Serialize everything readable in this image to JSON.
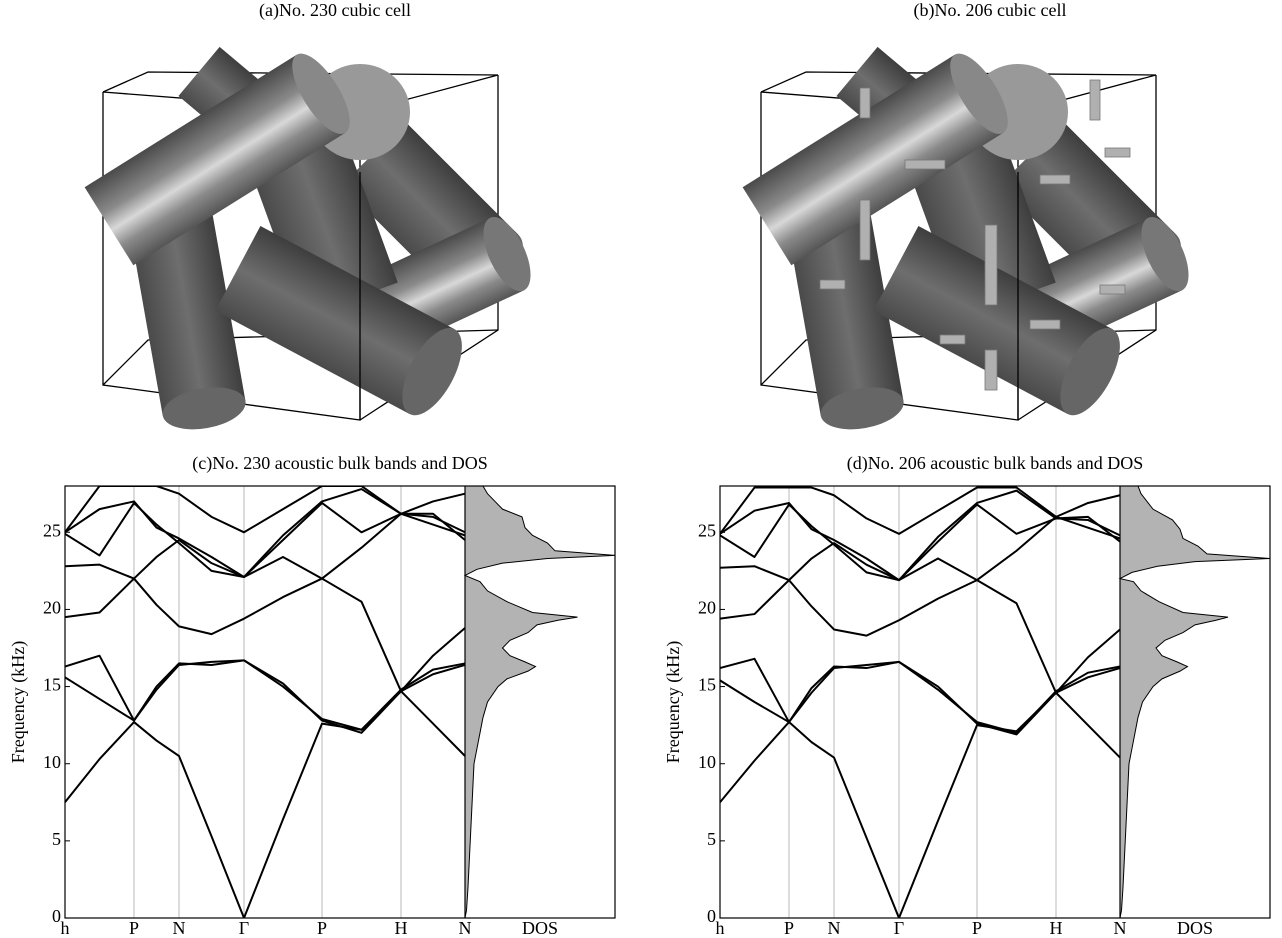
{
  "panels": [
    {
      "title": "(a)No. 230 cubic cell"
    },
    {
      "title": "(b)No. 206 cubic cell"
    }
  ],
  "chart_data": [
    {
      "type": "line",
      "title": "(c)No. 230 acoustic bulk bands and DOS",
      "ylabel": "Frequency (kHz)",
      "xlim": [
        0,
        4
      ],
      "ylim": [
        0,
        28
      ],
      "yticks": [
        0,
        5,
        10,
        15,
        20,
        25
      ],
      "xticks": [
        {
          "value": 0,
          "label": "h"
        },
        {
          "value": 0.69,
          "label": "P"
        },
        {
          "value": 1.14,
          "label": "N"
        },
        {
          "value": 1.79,
          "label": "Γ"
        },
        {
          "value": 2.57,
          "label": "P"
        },
        {
          "value": 3.36,
          "label": "H"
        },
        {
          "value": 4,
          "label": "N"
        }
      ],
      "x": [
        0,
        0.345,
        0.69,
        0.915,
        1.14,
        1.465,
        1.79,
        2.18,
        2.57,
        2.965,
        3.36,
        3.68,
        4
      ],
      "series": [
        {
          "color": "#000000",
          "values": [
            7.5,
            10.3,
            12.7,
            11.5,
            10.5,
            5.3,
            0,
            6.4,
            12.6,
            12.2,
            14.7,
            12.6,
            10.5
          ]
        },
        {
          "color": "#000000",
          "values": [
            15.6,
            14.2,
            12.8,
            14.8,
            16.4,
            16.6,
            16.7,
            15.2,
            12.8,
            12.0,
            14.7,
            15.8,
            16.4
          ]
        },
        {
          "color": "#000000",
          "values": [
            16.3,
            17.0,
            12.8,
            15.0,
            16.5,
            16.4,
            16.7,
            15.0,
            12.9,
            12.2,
            14.8,
            16.1,
            16.5
          ]
        },
        {
          "color": "#000000",
          "values": [
            19.5,
            19.8,
            22.0,
            20.3,
            18.9,
            18.4,
            19.4,
            20.8,
            22.0,
            24.0,
            26.2,
            25.5,
            24.8
          ]
        },
        {
          "color": "#000000",
          "values": [
            22.8,
            22.9,
            22.0,
            23.4,
            24.5,
            23.0,
            22.1,
            23.4,
            22.0,
            20.5,
            14.7,
            17.0,
            18.8
          ]
        },
        {
          "color": "#000000",
          "values": [
            24.9,
            23.5,
            26.9,
            25.5,
            24.3,
            22.5,
            22.1,
            24.5,
            26.9,
            25.0,
            26.2,
            26.0,
            25.0
          ]
        },
        {
          "color": "#000000",
          "values": [
            25.0,
            26.5,
            27.0,
            25.3,
            24.6,
            23.4,
            22.1,
            24.8,
            27.0,
            27.8,
            26.2,
            26.2,
            24.5
          ]
        },
        {
          "color": "#000000",
          "values": [
            25.0,
            28.0,
            28.0,
            28.0,
            27.5,
            26.0,
            25.0,
            26.5,
            28.0,
            28.0,
            26.2,
            27.0,
            27.5
          ]
        }
      ],
      "dos": {
        "label": "DOS",
        "color": "#b3b3b3",
        "xlim": [
          0,
          1
        ],
        "frequency": [
          0,
          0.5,
          2,
          4,
          6,
          8,
          10,
          11,
          12,
          13,
          14,
          15,
          15.5,
          16,
          16.3,
          16.6,
          17,
          17.5,
          18,
          18.5,
          19,
          19.3,
          19.5,
          19.8,
          20.5,
          21.2,
          21.8,
          22.2,
          22.6,
          23.0,
          23.3,
          23.5,
          23.8,
          24.3,
          24.8,
          25.3,
          26,
          26.5,
          27,
          27.5,
          28
        ],
        "density": [
          0,
          0.01,
          0.02,
          0.03,
          0.04,
          0.05,
          0.06,
          0.08,
          0.1,
          0.12,
          0.15,
          0.22,
          0.28,
          0.42,
          0.47,
          0.4,
          0.3,
          0.25,
          0.3,
          0.42,
          0.48,
          0.62,
          0.75,
          0.45,
          0.28,
          0.15,
          0.1,
          0,
          0.08,
          0.25,
          0.55,
          1.0,
          0.6,
          0.55,
          0.45,
          0.4,
          0.38,
          0.25,
          0.2,
          0.15,
          0.12
        ]
      }
    },
    {
      "type": "line",
      "title": "(d)No. 206 acoustic bulk bands and DOS",
      "ylabel": "Frequency (kHz)",
      "xlim": [
        0,
        4
      ],
      "ylim": [
        0,
        28
      ],
      "yticks": [
        0,
        5,
        10,
        15,
        20,
        25
      ],
      "xticks": [
        {
          "value": 0,
          "label": "h"
        },
        {
          "value": 0.69,
          "label": "P"
        },
        {
          "value": 1.14,
          "label": "N"
        },
        {
          "value": 1.79,
          "label": "Γ"
        },
        {
          "value": 2.57,
          "label": "P"
        },
        {
          "value": 3.36,
          "label": "H"
        },
        {
          "value": 4,
          "label": "N"
        }
      ],
      "x": [
        0,
        0.345,
        0.69,
        0.915,
        1.14,
        1.465,
        1.79,
        2.18,
        2.57,
        2.965,
        3.36,
        3.68,
        4
      ],
      "series": [
        {
          "color": "#000000",
          "values": [
            7.5,
            10.2,
            12.7,
            11.4,
            10.4,
            5.2,
            0,
            6.3,
            12.5,
            12.1,
            14.6,
            12.5,
            10.4
          ]
        },
        {
          "color": "#000000",
          "values": [
            15.4,
            14.0,
            12.7,
            14.6,
            16.2,
            16.4,
            16.6,
            15.0,
            12.6,
            11.9,
            14.6,
            15.6,
            16.2
          ]
        },
        {
          "color": "#000000",
          "values": [
            16.2,
            16.8,
            12.7,
            14.9,
            16.3,
            16.2,
            16.6,
            14.8,
            12.7,
            12.0,
            14.7,
            15.9,
            16.3
          ]
        },
        {
          "color": "#000000",
          "values": [
            19.4,
            19.7,
            21.9,
            20.2,
            18.7,
            18.3,
            19.3,
            20.7,
            21.9,
            23.8,
            26.0,
            25.3,
            24.6
          ]
        },
        {
          "color": "#000000",
          "values": [
            22.7,
            22.8,
            21.9,
            23.3,
            24.3,
            22.9,
            21.9,
            23.3,
            21.9,
            20.4,
            14.6,
            16.9,
            18.7
          ]
        },
        {
          "color": "#000000",
          "values": [
            24.8,
            23.4,
            26.8,
            25.4,
            24.2,
            22.4,
            21.9,
            24.4,
            26.8,
            24.9,
            25.9,
            25.8,
            24.8
          ]
        },
        {
          "color": "#000000",
          "values": [
            24.9,
            26.4,
            26.9,
            25.2,
            24.5,
            23.3,
            21.9,
            24.7,
            26.9,
            27.7,
            25.9,
            26.0,
            24.4
          ]
        },
        {
          "color": "#000000",
          "values": [
            24.9,
            27.9,
            27.9,
            27.9,
            27.4,
            25.9,
            24.9,
            26.4,
            27.9,
            27.9,
            26.0,
            26.9,
            27.4
          ]
        }
      ],
      "dos": {
        "label": "DOS",
        "color": "#b3b3b3",
        "xlim": [
          0,
          1
        ],
        "frequency": [
          0,
          0.5,
          2,
          4,
          6,
          8,
          10,
          11,
          12,
          13,
          14,
          15,
          15.5,
          16,
          16.3,
          16.6,
          17,
          17.5,
          18,
          18.5,
          19,
          19.3,
          19.5,
          19.8,
          20.5,
          21.2,
          21.8,
          22.0,
          22.4,
          22.8,
          23.1,
          23.3,
          23.6,
          24.1,
          24.6,
          25.2,
          25.8,
          26.5,
          27,
          27.5,
          28
        ],
        "density": [
          0,
          0.01,
          0.02,
          0.03,
          0.04,
          0.05,
          0.06,
          0.08,
          0.1,
          0.12,
          0.15,
          0.22,
          0.28,
          0.4,
          0.45,
          0.38,
          0.28,
          0.24,
          0.3,
          0.42,
          0.5,
          0.64,
          0.72,
          0.42,
          0.26,
          0.14,
          0.09,
          0,
          0.08,
          0.25,
          0.5,
          1.0,
          0.58,
          0.52,
          0.42,
          0.4,
          0.35,
          0.22,
          0.18,
          0.14,
          0.12
        ]
      }
    }
  ]
}
